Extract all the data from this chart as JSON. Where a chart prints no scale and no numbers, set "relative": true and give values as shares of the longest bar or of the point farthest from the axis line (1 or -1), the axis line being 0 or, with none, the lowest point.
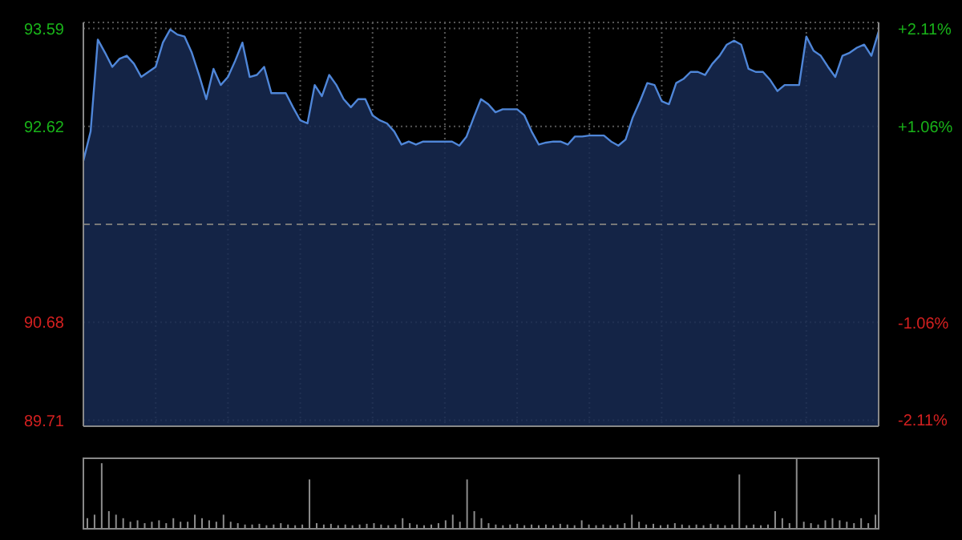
{
  "chart_data": [
    {
      "type": "area",
      "categories": [
        null,
        null,
        null,
        null,
        null,
        null,
        null,
        null,
        null,
        null,
        null,
        null,
        null,
        null,
        null,
        null,
        null,
        null,
        null,
        null,
        null,
        null,
        null,
        null,
        null,
        null,
        null,
        null,
        null,
        null,
        null,
        null,
        null,
        null,
        null,
        null,
        null,
        null,
        null,
        null,
        null,
        null,
        null,
        null,
        null,
        null,
        null,
        null,
        null,
        null,
        null,
        null,
        null,
        null,
        null,
        null,
        null,
        null,
        null,
        null,
        null,
        null,
        null,
        null,
        null,
        null,
        null,
        null,
        null,
        null,
        null,
        null,
        null,
        null,
        null,
        null,
        null,
        null,
        null,
        null,
        null,
        null,
        null,
        null,
        null,
        null,
        null,
        null,
        null,
        null,
        null,
        null,
        null,
        null,
        null,
        null,
        null,
        null,
        null,
        null,
        null,
        null,
        null,
        null,
        null,
        null,
        null,
        null,
        null,
        null,
        null
      ],
      "values": [
        92.28,
        92.57,
        93.48,
        93.35,
        93.21,
        93.29,
        93.32,
        93.24,
        93.11,
        93.16,
        93.21,
        93.45,
        93.58,
        93.53,
        93.51,
        93.35,
        93.13,
        92.89,
        93.19,
        93.03,
        93.11,
        93.27,
        93.45,
        93.11,
        93.13,
        93.21,
        92.95,
        92.95,
        92.95,
        92.81,
        92.68,
        92.65,
        93.03,
        92.92,
        93.13,
        93.03,
        92.89,
        92.81,
        92.89,
        92.89,
        92.73,
        92.68,
        92.65,
        92.57,
        92.44,
        92.47,
        92.44,
        92.47,
        92.47,
        92.47,
        92.47,
        92.47,
        92.43,
        92.52,
        92.71,
        92.89,
        92.84,
        92.76,
        92.79,
        92.79,
        92.79,
        92.73,
        92.57,
        92.44,
        92.46,
        92.47,
        92.47,
        92.44,
        92.52,
        92.52,
        92.53,
        92.53,
        92.53,
        92.47,
        92.43,
        92.49,
        92.71,
        92.87,
        93.05,
        93.03,
        92.87,
        92.84,
        93.05,
        93.09,
        93.16,
        93.16,
        93.13,
        93.24,
        93.32,
        93.43,
        93.47,
        93.43,
        93.19,
        93.16,
        93.16,
        93.08,
        92.97,
        93.03,
        93.03,
        93.03,
        93.51,
        93.37,
        93.32,
        93.21,
        93.11,
        93.32,
        93.35,
        93.4,
        93.43,
        93.32,
        93.56
      ],
      "color": "#4f86d8",
      "ylim": [
        89.65,
        93.65
      ],
      "yticks": [
        89.71,
        90.68,
        92.62,
        93.59
      ],
      "y2lim": [
        -2.18,
        2.18
      ],
      "y2ticks": [
        {
          "value": -2.11,
          "label": "-2.11%"
        },
        {
          "value": -1.06,
          "label": "-1.06%"
        },
        {
          "value": 1.06,
          "label": "+1.06%"
        },
        {
          "value": 2.11,
          "label": "+2.11%"
        }
      ],
      "ref_lines": [
        {
          "axis": "y",
          "value": 91.65,
          "line_style": "dashed"
        }
      ],
      "grid": true,
      "tick_labels": "y"
    },
    {
      "type": "bar",
      "relative": true,
      "categories": [
        null,
        null,
        null,
        null,
        null,
        null,
        null,
        null,
        null,
        null,
        null,
        null,
        null,
        null,
        null,
        null,
        null,
        null,
        null,
        null,
        null,
        null,
        null,
        null,
        null,
        null,
        null,
        null,
        null,
        null,
        null,
        null,
        null,
        null,
        null,
        null,
        null,
        null,
        null,
        null,
        null,
        null,
        null,
        null,
        null,
        null,
        null,
        null,
        null,
        null,
        null,
        null,
        null,
        null,
        null,
        null,
        null,
        null,
        null,
        null,
        null,
        null,
        null,
        null,
        null,
        null,
        null,
        null,
        null,
        null,
        null,
        null,
        null,
        null,
        null,
        null,
        null,
        null,
        null,
        null,
        null,
        null,
        null,
        null,
        null,
        null,
        null,
        null,
        null,
        null,
        null,
        null,
        null,
        null,
        null,
        null,
        null,
        null,
        null,
        null,
        null,
        null,
        null,
        null,
        null,
        null,
        null,
        null,
        null,
        null,
        null
      ],
      "values": [
        0.15,
        0.2,
        0.93,
        0.25,
        0.2,
        0.15,
        0.1,
        0.12,
        0.08,
        0.1,
        0.12,
        0.08,
        0.15,
        0.1,
        0.1,
        0.2,
        0.15,
        0.12,
        0.1,
        0.2,
        0.1,
        0.08,
        0.06,
        0.06,
        0.07,
        0.05,
        0.06,
        0.08,
        0.06,
        0.05,
        0.06,
        0.7,
        0.08,
        0.06,
        0.07,
        0.05,
        0.06,
        0.05,
        0.06,
        0.07,
        0.08,
        0.06,
        0.05,
        0.06,
        0.15,
        0.08,
        0.06,
        0.05,
        0.06,
        0.08,
        0.12,
        0.2,
        0.1,
        0.7,
        0.25,
        0.15,
        0.08,
        0.06,
        0.05,
        0.06,
        0.07,
        0.05,
        0.06,
        0.05,
        0.06,
        0.05,
        0.07,
        0.06,
        0.05,
        0.12,
        0.06,
        0.05,
        0.06,
        0.05,
        0.06,
        0.08,
        0.2,
        0.1,
        0.06,
        0.07,
        0.05,
        0.06,
        0.08,
        0.06,
        0.05,
        0.06,
        0.05,
        0.07,
        0.06,
        0.05,
        0.06,
        0.77,
        0.05,
        0.06,
        0.05,
        0.06,
        0.25,
        0.15,
        0.08,
        1,
        0.1,
        0.08,
        0.06,
        0.12,
        0.15,
        0.12,
        0.1,
        0.08,
        0.15,
        0.08,
        0.2
      ],
      "color": "#8c8c8c"
    }
  ]
}
